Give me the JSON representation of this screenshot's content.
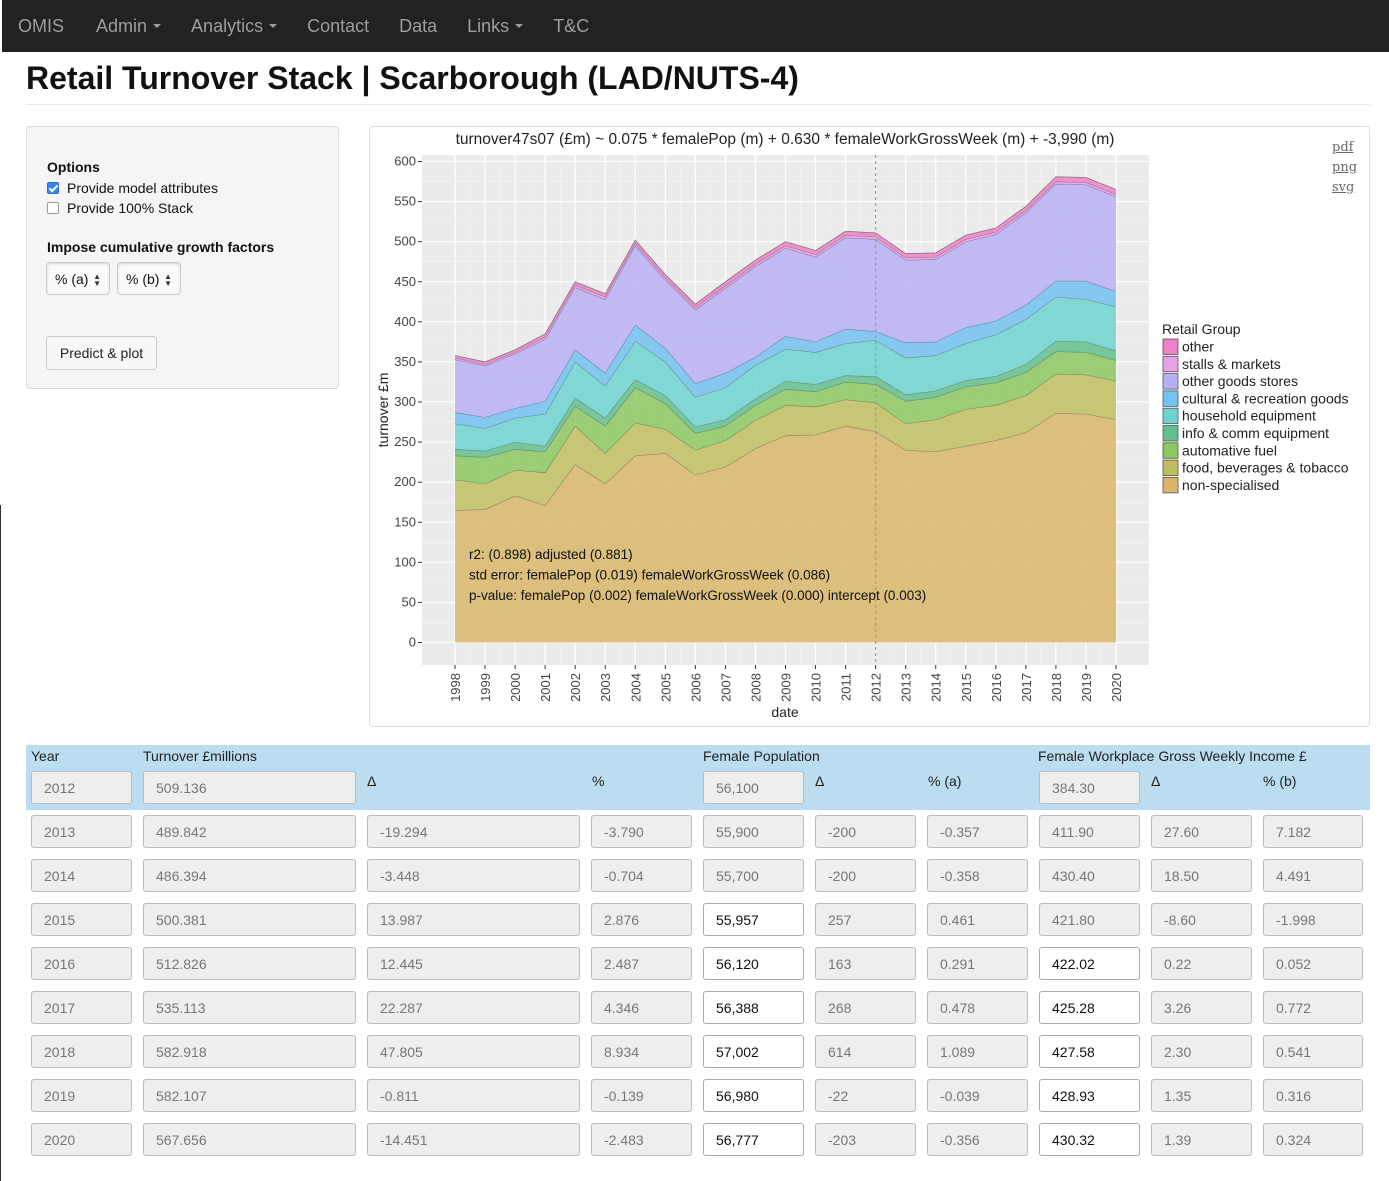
{
  "nav": {
    "brand": "OMIS",
    "items": [
      {
        "label": "Admin",
        "dropdown": true
      },
      {
        "label": "Analytics",
        "dropdown": true
      },
      {
        "label": "Contact",
        "dropdown": false
      },
      {
        "label": "Data",
        "dropdown": false
      },
      {
        "label": "Links",
        "dropdown": true
      },
      {
        "label": "T&C",
        "dropdown": false
      }
    ]
  },
  "page_title": "Retail Turnover Stack | Scarborough (LAD/NUTS-4)",
  "options": {
    "heading": "Options",
    "checkbox_attributes": {
      "label": "Provide model attributes",
      "checked": true
    },
    "checkbox_stack": {
      "label": "Provide 100% Stack",
      "checked": false
    },
    "growth_heading": "Impose cumulative growth factors",
    "select_a": "% (a)",
    "select_b": "% (b)",
    "predict_button": "Predict & plot"
  },
  "downloads": [
    "pdf",
    "png",
    "svg"
  ],
  "chart_data": {
    "type": "area",
    "title": "turnover47s07 (£m) ~ 0.075 * femalePop (m) + 0.630 * femaleWorkGrossWeek (m) + -3,990 (m)",
    "xlabel": "date",
    "ylabel": "turnover £m",
    "ylim": [
      0,
      600
    ],
    "yticks": [
      0,
      50,
      100,
      150,
      200,
      250,
      300,
      350,
      400,
      450,
      500,
      550,
      600
    ],
    "x": [
      1998,
      1999,
      2000,
      2001,
      2002,
      2003,
      2004,
      2005,
      2006,
      2007,
      2008,
      2009,
      2010,
      2011,
      2012,
      2013,
      2014,
      2015,
      2016,
      2017,
      2018,
      2019,
      2020
    ],
    "xtick_labels": [
      "1998",
      "1999",
      "2000",
      "2001",
      "2002",
      "2003",
      "2004",
      "2005",
      "2006",
      "2007",
      "2008",
      "2009",
      "2010",
      "2011",
      "2012",
      "2013",
      "2014",
      "2015",
      "2016",
      "2017",
      "2018",
      "2019",
      "2020"
    ],
    "vline_x": 2012,
    "grid": true,
    "legend_title": "Retail Group",
    "legend_placement": "right",
    "series": [
      {
        "name": "non-specialised",
        "color": "#d9b66a",
        "values": [
          165,
          166,
          183,
          171,
          222,
          198,
          233,
          236,
          209,
          219,
          242,
          258,
          259,
          270,
          263,
          240,
          238,
          245,
          252,
          262,
          286,
          285,
          278
        ]
      },
      {
        "name": "food, beverages & tobacco",
        "color": "#bfbf60",
        "values": [
          38,
          32,
          32,
          41,
          48,
          38,
          41,
          30,
          31,
          33,
          35,
          38,
          35,
          33,
          36,
          33,
          40,
          46,
          44,
          46,
          49,
          49,
          48
        ]
      },
      {
        "name": "automative fuel",
        "color": "#8cc860",
        "values": [
          30,
          33,
          26,
          26,
          25,
          34,
          44,
          32,
          21,
          18,
          19,
          20,
          19,
          22,
          23,
          28,
          28,
          28,
          28,
          29,
          28,
          28,
          26
        ]
      },
      {
        "name": "info & comm equipment",
        "color": "#63c08e",
        "values": [
          8,
          8,
          9,
          7,
          10,
          10,
          10,
          10,
          8,
          8,
          8,
          10,
          9,
          8,
          10,
          8,
          8,
          8,
          8,
          10,
          13,
          13,
          12
        ]
      },
      {
        "name": "household equipment",
        "color": "#6fd4d0",
        "values": [
          32,
          28,
          30,
          40,
          45,
          40,
          48,
          42,
          37,
          40,
          42,
          40,
          40,
          40,
          45,
          46,
          44,
          46,
          52,
          56,
          55,
          53,
          55
        ]
      },
      {
        "name": "cultural & recreation goods",
        "color": "#73c2f0",
        "values": [
          14,
          14,
          12,
          16,
          15,
          16,
          20,
          17,
          17,
          18,
          10,
          16,
          13,
          18,
          11,
          19,
          17,
          20,
          17,
          18,
          20,
          23,
          19
        ]
      },
      {
        "name": "other goods stores",
        "color": "#b8b0f5",
        "values": [
          66,
          64,
          68,
          77,
          78,
          92,
          99,
          85,
          92,
          106,
          113,
          110,
          106,
          114,
          115,
          103,
          103,
          107,
          108,
          115,
          121,
          120,
          118
        ]
      },
      {
        "name": "stalls & markets",
        "color": "#e8a0e8",
        "values": [
          2,
          2,
          2,
          3,
          3,
          3,
          3,
          3,
          3,
          3,
          3,
          3,
          3,
          3,
          3,
          3,
          3,
          3,
          3,
          3,
          3,
          3,
          3
        ]
      },
      {
        "name": "other",
        "color": "#f080c8",
        "values": [
          3,
          3,
          3,
          4,
          4,
          4,
          4,
          4,
          4,
          5,
          5,
          5,
          5,
          5,
          5,
          5,
          5,
          5,
          5,
          5,
          6,
          6,
          6
        ]
      }
    ],
    "annotations": [
      "r2: (0.898) adjusted (0.881)",
      "std error: femalePop (0.019) femaleWorkGrossWeek (0.086)",
      "p-value: femalePop (0.002) femaleWorkGrossWeek (0.000) intercept (0.003)"
    ]
  },
  "table": {
    "headers": {
      "year": "Year",
      "turnover": "Turnover £millions",
      "delta": "Δ",
      "pct": "%",
      "female_pop": "Female Population",
      "pop_delta": "Δ",
      "pop_pct": "% (a)",
      "income": "Female Workplace Gross Weekly Income £",
      "income_delta": "Δ",
      "income_pct": "% (b)"
    },
    "base_row": {
      "year": "2012",
      "turnover": "509.136",
      "female_pop": "56,100",
      "income": "384.30"
    },
    "rows": [
      {
        "year": "2013",
        "turnover": "489.842",
        "delta": "-19.294",
        "pct": "-3.790",
        "female_pop": "55,900",
        "pop_delta": "-200",
        "pop_pct": "-0.357",
        "income": "411.90",
        "income_delta": "27.60",
        "income_pct": "7.182",
        "editable": false
      },
      {
        "year": "2014",
        "turnover": "486.394",
        "delta": "-3.448",
        "pct": "-0.704",
        "female_pop": "55,700",
        "pop_delta": "-200",
        "pop_pct": "-0.358",
        "income": "430.40",
        "income_delta": "18.50",
        "income_pct": "4.491",
        "editable": false
      },
      {
        "year": "2015",
        "turnover": "500.381",
        "delta": "13.987",
        "pct": "2.876",
        "female_pop": "55,957",
        "pop_delta": "257",
        "pop_pct": "0.461",
        "income": "421.80",
        "income_delta": "-8.60",
        "income_pct": "-1.998",
        "editable": "pop"
      },
      {
        "year": "2016",
        "turnover": "512.826",
        "delta": "12.445",
        "pct": "2.487",
        "female_pop": "56,120",
        "pop_delta": "163",
        "pop_pct": "0.291",
        "income": "422.02",
        "income_delta": "0.22",
        "income_pct": "0.052",
        "editable": true
      },
      {
        "year": "2017",
        "turnover": "535.113",
        "delta": "22.287",
        "pct": "4.346",
        "female_pop": "56,388",
        "pop_delta": "268",
        "pop_pct": "0.478",
        "income": "425.28",
        "income_delta": "3.26",
        "income_pct": "0.772",
        "editable": true
      },
      {
        "year": "2018",
        "turnover": "582.918",
        "delta": "47.805",
        "pct": "8.934",
        "female_pop": "57,002",
        "pop_delta": "614",
        "pop_pct": "1.089",
        "income": "427.58",
        "income_delta": "2.30",
        "income_pct": "0.541",
        "editable": true
      },
      {
        "year": "2019",
        "turnover": "582.107",
        "delta": "-0.811",
        "pct": "-0.139",
        "female_pop": "56,980",
        "pop_delta": "-22",
        "pop_pct": "-0.039",
        "income": "428.93",
        "income_delta": "1.35",
        "income_pct": "0.316",
        "editable": true
      },
      {
        "year": "2020",
        "turnover": "567.656",
        "delta": "-14.451",
        "pct": "-2.483",
        "female_pop": "56,777",
        "pop_delta": "-203",
        "pop_pct": "-0.356",
        "income": "430.32",
        "income_delta": "1.39",
        "income_pct": "0.324",
        "editable": true
      }
    ]
  }
}
